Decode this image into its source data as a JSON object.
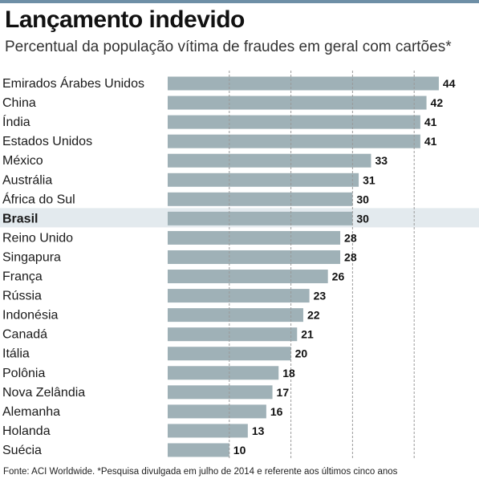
{
  "header": {
    "title": "Lançamento indevido",
    "subtitle": "Percentual da população vítima de fraudes em geral com cartões*"
  },
  "footer": {
    "source": "Fonte: ACI Worldwide. *Pesquisa divulgada em julho de 2014 e referente aos últimos cinco anos"
  },
  "colors": {
    "bar": "#9fb1b7",
    "highlight_row": "#e3eaee",
    "gridline": "#9a9a9a",
    "top_bar": "#6e8fa6"
  },
  "chart_data": {
    "type": "bar",
    "orientation": "horizontal",
    "title": "Lançamento indevido",
    "subtitle": "Percentual da população vítima de fraudes em geral com cartões*",
    "categories": [
      "Emirados Árabes Unidos",
      "China",
      "Índia",
      "Estados Unidos",
      "México",
      "Austrália",
      "África do Sul",
      "Brasil",
      "Reino Unido",
      "Singapura",
      "França",
      "Rússia",
      "Indonésia",
      "Canadá",
      "Itália",
      "Polônia",
      "Nova Zelândia",
      "Alemanha",
      "Holanda",
      "Suécia"
    ],
    "values": [
      44,
      42,
      41,
      41,
      33,
      31,
      30,
      30,
      28,
      28,
      26,
      23,
      22,
      21,
      20,
      18,
      17,
      16,
      13,
      10
    ],
    "highlight": "Brasil",
    "xlim": [
      0,
      44
    ],
    "gridlines_at": [
      10,
      20,
      30,
      40
    ],
    "grid": true,
    "data_labels": true,
    "legend": "none"
  }
}
